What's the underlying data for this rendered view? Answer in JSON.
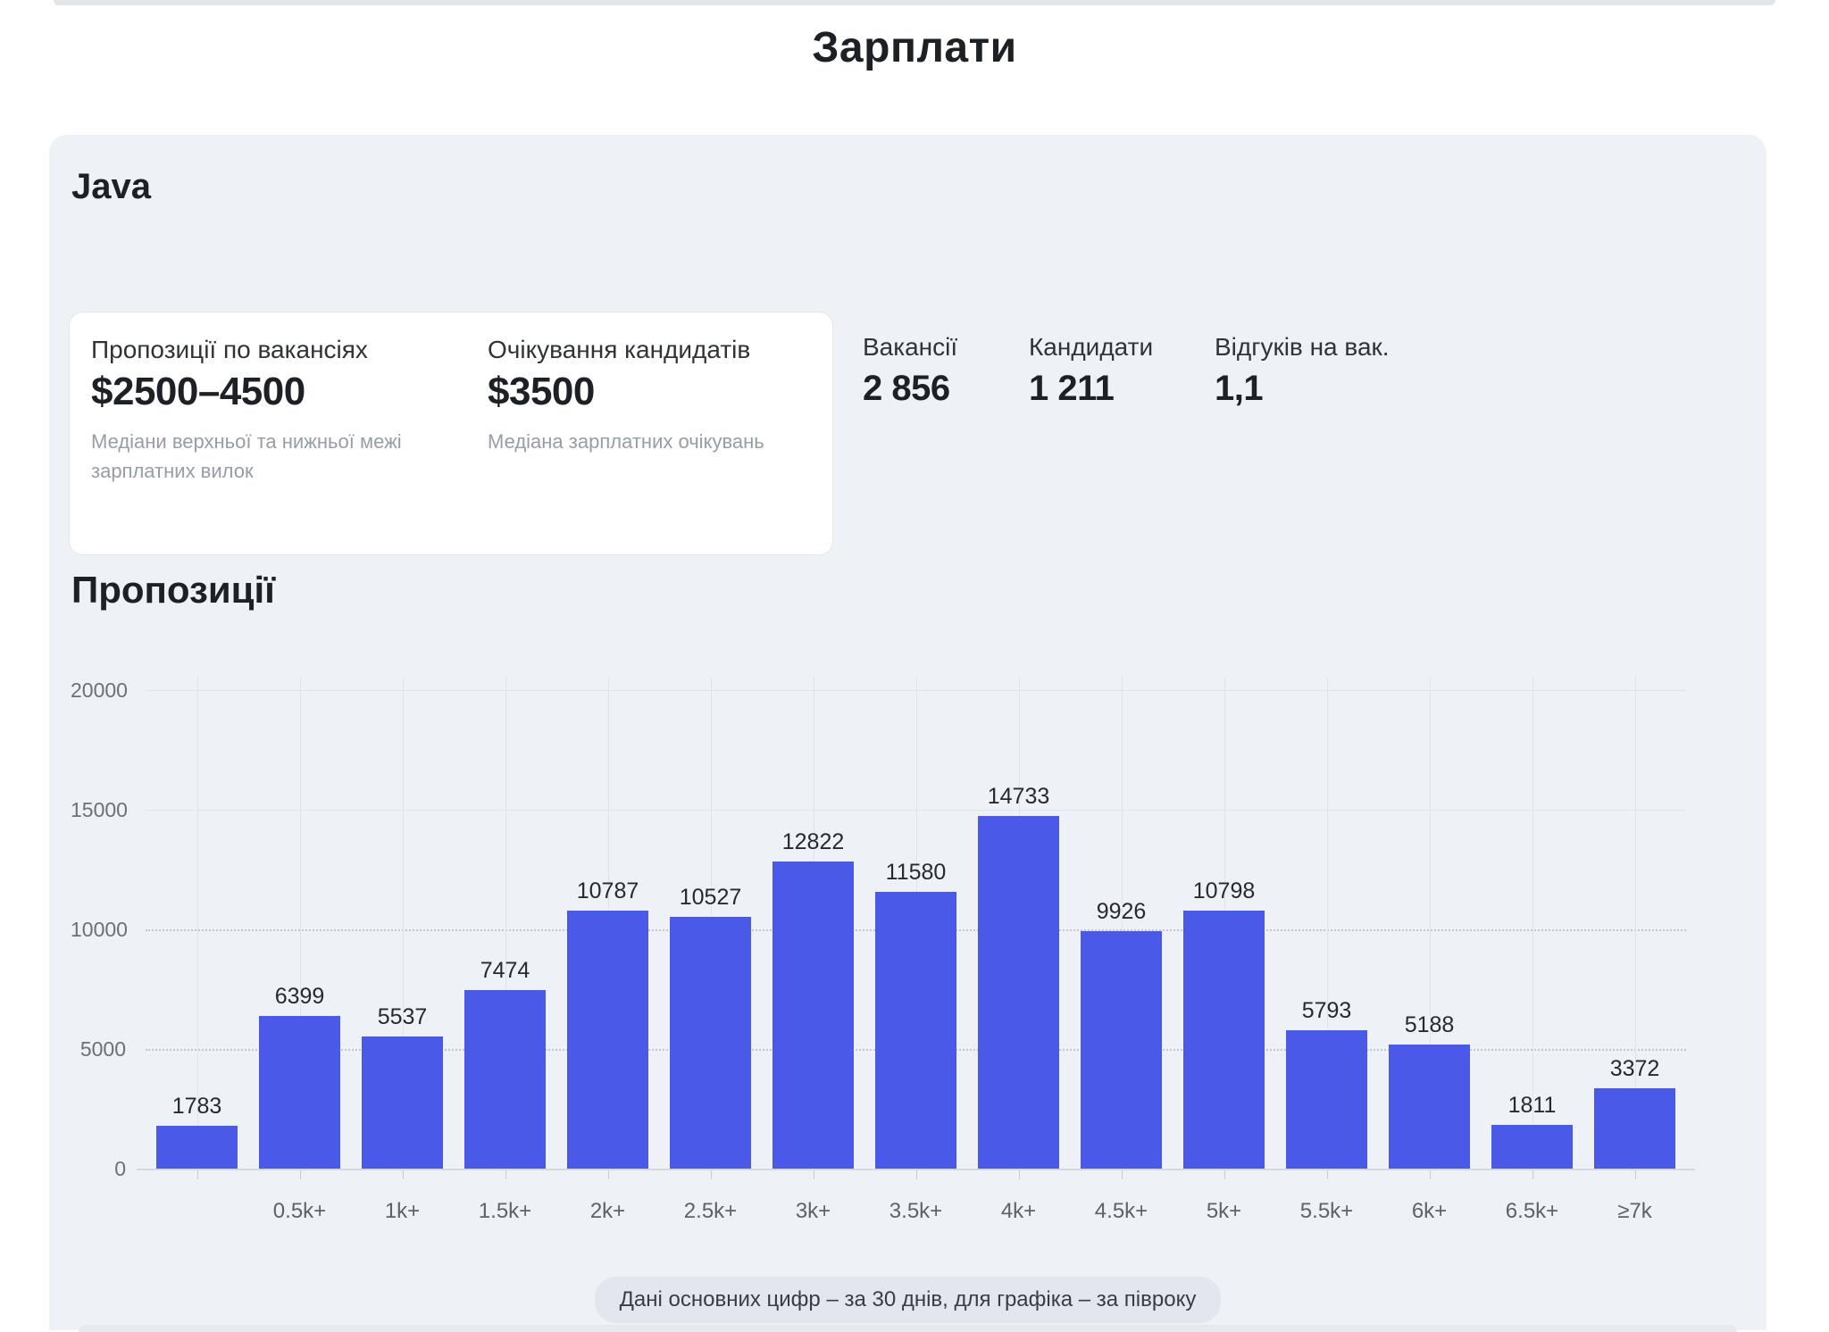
{
  "page": {
    "title": "Зарплати"
  },
  "card": {
    "language": "Java",
    "salary_card": {
      "offers": {
        "label": "Пропозиції по вакансіях",
        "value": "$2500–4500",
        "note": "Медіани верхньої та нижньої межі зарплатних вилок"
      },
      "expectations": {
        "label": "Очікування кандидатів",
        "value": "$3500",
        "note": "Медіана зарплатних очікувань"
      }
    },
    "stats": [
      {
        "label": "Вакансії",
        "value": "2 856"
      },
      {
        "label": "Кандидати",
        "value": "1 211"
      },
      {
        "label": "Відгуків на вак.",
        "value": "1,1"
      }
    ],
    "footnote": "Дані основних цифр – за 30 днів, для графіка – за півроку"
  },
  "chart_section": {
    "heading": "Пропозиції"
  },
  "chart_data": {
    "type": "bar",
    "title": "Пропозиції",
    "categories": [
      "",
      "0.5k+",
      "1k+",
      "1.5k+",
      "2k+",
      "2.5k+",
      "3k+",
      "3.5k+",
      "4k+",
      "4.5k+",
      "5k+",
      "5.5k+",
      "6k+",
      "6.5k+",
      "≥7k"
    ],
    "values": [
      1783,
      6399,
      5537,
      7474,
      10787,
      10527,
      12822,
      11580,
      14733,
      9926,
      10798,
      5793,
      5188,
      1811,
      3372
    ],
    "xlabel": "",
    "ylabel": "",
    "ylim": [
      0,
      20000
    ],
    "yticks": [
      0,
      5000,
      10000,
      15000,
      20000
    ],
    "grid": true,
    "legend_position": "none",
    "bar_color": "#4a59e8"
  },
  "colors": {
    "bar": "#4a59e8",
    "card_background": "#eef1f6",
    "inner_card_background": "#ffffff",
    "muted_text": "#979da6",
    "axis_text": "#5e6268"
  }
}
